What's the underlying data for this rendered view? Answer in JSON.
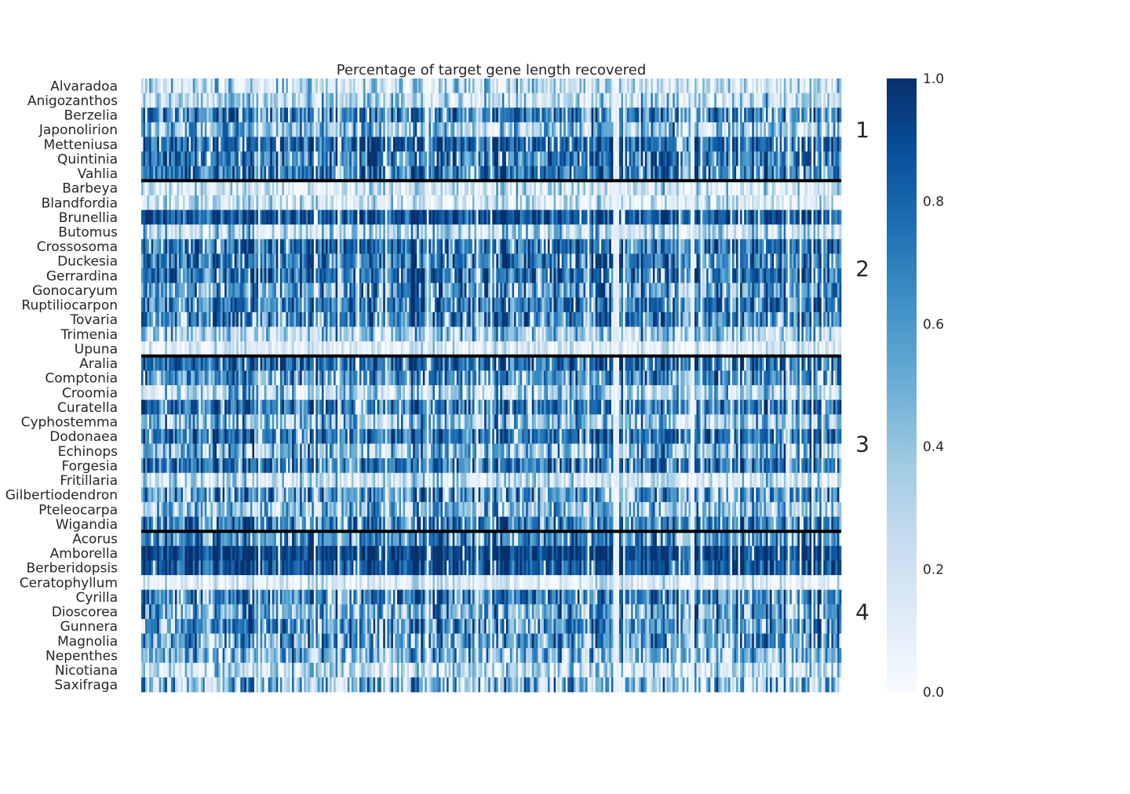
{
  "chart_data": {
    "type": "heatmap",
    "title": "Percentage of target gene length recovered",
    "xlabel": "",
    "ylabel": "",
    "colormap": "Blues",
    "color_range": [
      0.0,
      1.0
    ],
    "colorbar_ticks": [
      0.0,
      0.2,
      0.4,
      0.6,
      0.8,
      1.0
    ],
    "colorbar_tick_labels": [
      "0.0",
      "0.2",
      "0.4",
      "0.6",
      "0.8",
      "1.0"
    ],
    "separator_color": "#000000",
    "rows": [
      {
        "label": "Alvaradoa",
        "group": 1,
        "mean": 0.25,
        "variability": 0.35
      },
      {
        "label": "Anigozanthos",
        "group": 1,
        "mean": 0.3,
        "variability": 0.3
      },
      {
        "label": "Berzelia",
        "group": 1,
        "mean": 0.68,
        "variability": 0.3
      },
      {
        "label": "Japonolirion",
        "group": 1,
        "mean": 0.45,
        "variability": 0.35
      },
      {
        "label": "Metteniusa",
        "group": 1,
        "mean": 0.78,
        "variability": 0.25
      },
      {
        "label": "Quintinia",
        "group": 1,
        "mean": 0.7,
        "variability": 0.3
      },
      {
        "label": "Vahlia",
        "group": 1,
        "mean": 0.72,
        "variability": 0.3
      },
      {
        "label": "Barbeya",
        "group": 2,
        "mean": 0.2,
        "variability": 0.3
      },
      {
        "label": "Blandfordia",
        "group": 2,
        "mean": 0.2,
        "variability": 0.3
      },
      {
        "label": "Brunellia",
        "group": 2,
        "mean": 0.85,
        "variability": 0.2
      },
      {
        "label": "Butomus",
        "group": 2,
        "mean": 0.3,
        "variability": 0.35
      },
      {
        "label": "Crossosoma",
        "group": 2,
        "mean": 0.75,
        "variability": 0.25
      },
      {
        "label": "Duckesia",
        "group": 2,
        "mean": 0.72,
        "variability": 0.3
      },
      {
        "label": "Gerrardina",
        "group": 2,
        "mean": 0.75,
        "variability": 0.3
      },
      {
        "label": "Gonocaryum",
        "group": 2,
        "mean": 0.6,
        "variability": 0.35
      },
      {
        "label": "Ruptiliocarpon",
        "group": 2,
        "mean": 0.7,
        "variability": 0.3
      },
      {
        "label": "Tovaria",
        "group": 2,
        "mean": 0.7,
        "variability": 0.3
      },
      {
        "label": "Trimenia",
        "group": 2,
        "mean": 0.4,
        "variability": 0.35
      },
      {
        "label": "Upuna",
        "group": 2,
        "mean": 0.12,
        "variability": 0.2
      },
      {
        "label": "Aralia",
        "group": 3,
        "mean": 0.8,
        "variability": 0.25
      },
      {
        "label": "Comptonia",
        "group": 3,
        "mean": 0.65,
        "variability": 0.3
      },
      {
        "label": "Croomia",
        "group": 3,
        "mean": 0.35,
        "variability": 0.35
      },
      {
        "label": "Curatella",
        "group": 3,
        "mean": 0.72,
        "variability": 0.3
      },
      {
        "label": "Cyphostemma",
        "group": 3,
        "mean": 0.45,
        "variability": 0.35
      },
      {
        "label": "Dodonaea",
        "group": 3,
        "mean": 0.75,
        "variability": 0.25
      },
      {
        "label": "Echinops",
        "group": 3,
        "mean": 0.5,
        "variability": 0.35
      },
      {
        "label": "Forgesia",
        "group": 3,
        "mean": 0.72,
        "variability": 0.3
      },
      {
        "label": "Fritillaria",
        "group": 3,
        "mean": 0.22,
        "variability": 0.3
      },
      {
        "label": "Gilbertiodendron",
        "group": 3,
        "mean": 0.6,
        "variability": 0.35
      },
      {
        "label": "Pteleocarpa",
        "group": 3,
        "mean": 0.45,
        "variability": 0.35
      },
      {
        "label": "Wigandia",
        "group": 3,
        "mean": 0.7,
        "variability": 0.3
      },
      {
        "label": "Acorus",
        "group": 4,
        "mean": 0.65,
        "variability": 0.3
      },
      {
        "label": "Amborella",
        "group": 4,
        "mean": 0.92,
        "variability": 0.12
      },
      {
        "label": "Berberidopsis",
        "group": 4,
        "mean": 0.85,
        "variability": 0.2
      },
      {
        "label": "Ceratophyllum",
        "group": 4,
        "mean": 0.12,
        "variability": 0.2
      },
      {
        "label": "Cyrilla",
        "group": 4,
        "mean": 0.68,
        "variability": 0.3
      },
      {
        "label": "Dioscorea",
        "group": 4,
        "mean": 0.55,
        "variability": 0.35
      },
      {
        "label": "Gunnera",
        "group": 4,
        "mean": 0.65,
        "variability": 0.3
      },
      {
        "label": "Magnolia",
        "group": 4,
        "mean": 0.6,
        "variability": 0.35
      },
      {
        "label": "Nepenthes",
        "group": 4,
        "mean": 0.5,
        "variability": 0.35
      },
      {
        "label": "Nicotiana",
        "group": 4,
        "mean": 0.25,
        "variability": 0.3
      },
      {
        "label": "Saxifraga",
        "group": 4,
        "mean": 0.45,
        "variability": 0.4
      }
    ],
    "groups": [
      {
        "label": "1",
        "first_row": 0,
        "last_row": 6
      },
      {
        "label": "2",
        "first_row": 7,
        "last_row": 18
      },
      {
        "label": "3",
        "first_row": 19,
        "last_row": 30
      },
      {
        "label": "4",
        "first_row": 31,
        "last_row": 41
      }
    ],
    "column_count": 353,
    "grid": false,
    "legend": "colorbar-right"
  }
}
